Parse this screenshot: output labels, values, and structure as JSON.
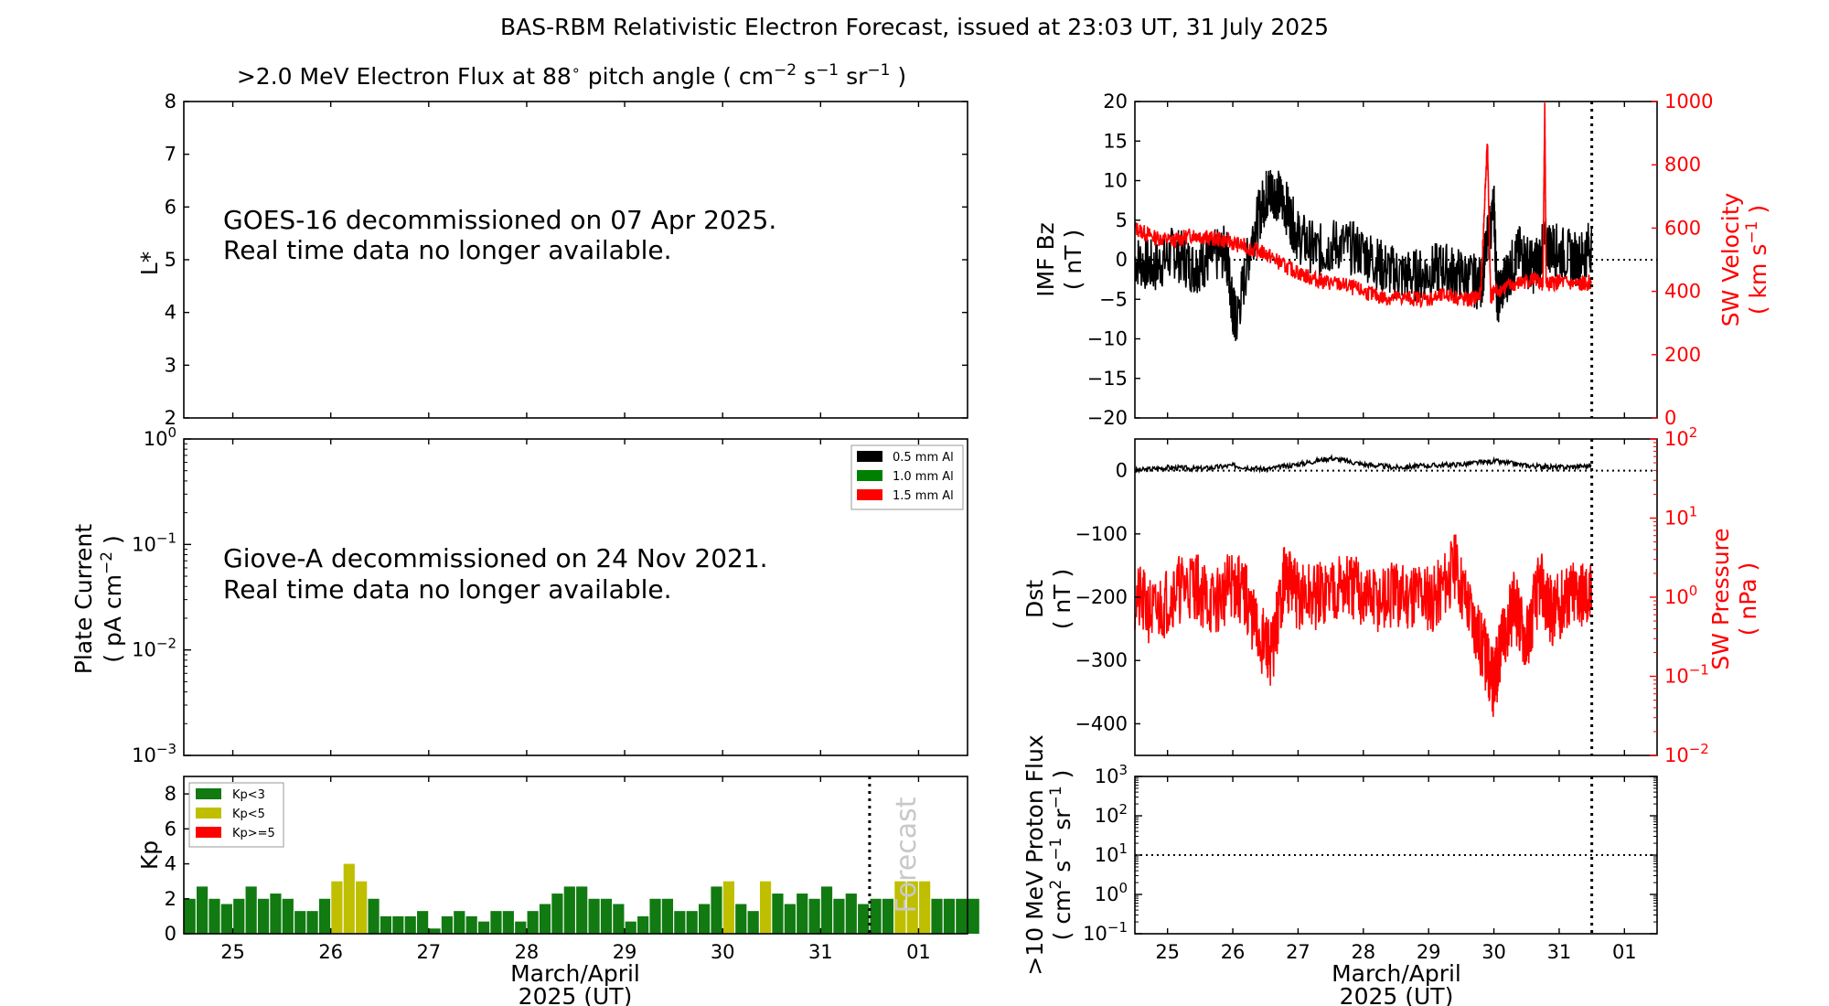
{
  "title": "BAS-RBM Relativistic Electron Forecast, issued at 23:03 UT, 31 July 2025",
  "flux_panel": {
    "title_pre": ">2.0 MeV Electron Flux at 88",
    "title_post": "pitch angle ( cm",
    "title_units": [
      "cm",
      "-2",
      "s",
      "-1",
      "sr",
      "-1"
    ],
    "ylabel": "L*",
    "message_line1": "GOES-16 decommissioned on 07 Apr 2025.",
    "message_line2": "Real time data no longer available."
  },
  "plate_panel": {
    "ylabel_line1": "Plate Current",
    "ylabel_line2_pre": "( pA cm",
    "ylabel_line2_sup": "-2",
    "ylabel_line2_post": " )",
    "message_line1": "Giove-A decommissioned on 24 Nov 2021.",
    "message_line2": "Real time data no longer available.",
    "legend": [
      {
        "label": "0.5 mm Al",
        "color": "#000000"
      },
      {
        "label": "1.0 mm Al",
        "color": "#008000"
      },
      {
        "label": "1.5 mm Al",
        "color": "#ff0000"
      }
    ]
  },
  "kp_panel": {
    "ylabel": "Kp",
    "forecast_label": "Forecast",
    "legend": [
      {
        "label": "Kp<3",
        "color": "#117a11"
      },
      {
        "label": "Kp<5",
        "color": "#bfbf00"
      },
      {
        "label": "Kp>=5",
        "color": "#ff0000"
      }
    ]
  },
  "imf_panel": {
    "ylabel_left": [
      "IMF Bz",
      "( nT )"
    ],
    "ylabel_right": [
      "SW Velocity",
      "( km s",
      "-1",
      " )"
    ]
  },
  "dst_panel": {
    "ylabel_left": [
      "Dst",
      "( nT )"
    ],
    "ylabel_right": [
      "SW Pressure",
      "( nPa )"
    ]
  },
  "proton_panel": {
    "ylabel": [
      ">10 MeV Proton Flux",
      "( cm",
      "2",
      " s",
      "-1",
      " sr",
      "-1",
      " )"
    ]
  },
  "xaxis": {
    "label_line1": "March/April",
    "label_line2": "2025 (UT)",
    "ticks": [
      "25",
      "26",
      "27",
      "28",
      "29",
      "30",
      "31",
      "01"
    ]
  },
  "colors": {
    "kp_low": "#117a11",
    "kp_mid": "#bfbf00",
    "kp_high": "#ff0000",
    "sw_red": "#ff0000",
    "black": "#000000"
  },
  "chart_data": [
    {
      "type": "line",
      "title": ">2.0 MeV Electron Flux at 88° pitch angle ( cm-2 s-1 sr-1 )",
      "ylabel": "L*",
      "ylim": [
        2,
        8
      ],
      "yticks": [
        2,
        3,
        4,
        5,
        6,
        7,
        8
      ],
      "x_range_days": [
        "2025-03-24 12:00",
        "2025-04-01 12:00"
      ],
      "series": []
    },
    {
      "type": "line",
      "ylabel": "Plate Current ( pA cm-2 )",
      "yscale": "log",
      "ylim": [
        0.001,
        1
      ],
      "yticks_exponent": [
        -3,
        -2,
        -1,
        0
      ],
      "series": [
        {
          "name": "0.5 mm Al",
          "values": []
        },
        {
          "name": "1.0 mm Al",
          "values": []
        },
        {
          "name": "1.5 mm Al",
          "values": []
        }
      ]
    },
    {
      "type": "bar",
      "ylabel": "Kp",
      "ylim": [
        0,
        9
      ],
      "yticks": [
        0,
        2,
        4,
        6,
        8
      ],
      "x_start": "2025-03-24 12:00",
      "bin_hours": 3,
      "forecast_start": "2025-03-31 12:00",
      "values": [
        2.0,
        2.7,
        2.0,
        1.7,
        2.0,
        2.7,
        2.0,
        2.3,
        2.0,
        1.3,
        1.3,
        2.0,
        3.0,
        4.0,
        3.0,
        2.0,
        1.0,
        1.0,
        1.0,
        1.3,
        0.3,
        1.0,
        1.3,
        1.0,
        0.7,
        1.3,
        1.3,
        0.7,
        1.3,
        1.7,
        2.3,
        2.7,
        2.7,
        2.0,
        2.0,
        1.7,
        0.7,
        1.0,
        2.0,
        2.0,
        1.3,
        1.3,
        1.7,
        2.7,
        3.0,
        1.7,
        1.3,
        3.0,
        2.3,
        1.7,
        2.3,
        2.0,
        2.7,
        2.0,
        2.3,
        1.7,
        2.0,
        2.0,
        3.0,
        3.0,
        3.0,
        2.0,
        2.0,
        2.0,
        2.0
      ]
    },
    {
      "type": "line",
      "ylabel": "IMF Bz ( nT )",
      "ylim": [
        -20,
        20
      ],
      "yticks": [
        -20,
        -15,
        -10,
        -5,
        0,
        5,
        10,
        15,
        20
      ],
      "y2label": "SW Velocity ( km s-1 )",
      "y2lim": [
        0,
        1000
      ],
      "y2ticks": [
        0,
        200,
        400,
        600,
        800,
        1000
      ],
      "now_marker": "2025-03-31 12:00",
      "series": [
        {
          "name": "IMF Bz",
          "axis": "left",
          "color": "#000000",
          "x": [
            24.5,
            24.8,
            25.1,
            25.4,
            25.6,
            25.9,
            26.0,
            26.05,
            26.3,
            26.5,
            26.6,
            26.8,
            27.0,
            27.3,
            27.6,
            28.0,
            28.3,
            28.6,
            28.9,
            29.2,
            29.5,
            29.8,
            30.0,
            30.05,
            30.2,
            30.4,
            30.6,
            30.8,
            31.0,
            31.3,
            31.5
          ],
          "values": [
            0,
            -1,
            1,
            -1,
            0,
            1,
            -6,
            -8,
            3,
            8,
            9,
            7,
            3,
            1,
            2,
            1,
            -1,
            -2,
            -2,
            -1,
            -2,
            -3,
            7,
            -5,
            -2,
            1,
            -1,
            2,
            1,
            0,
            2
          ]
        },
        {
          "name": "SW Velocity",
          "axis": "right",
          "color": "#ff0000",
          "x": [
            24.5,
            24.8,
            25.1,
            25.4,
            25.6,
            25.9,
            26.2,
            26.5,
            26.8,
            27.1,
            27.4,
            27.7,
            28.0,
            28.3,
            28.6,
            29.0,
            29.3,
            29.6,
            29.8,
            29.9,
            29.95,
            30.0,
            30.3,
            30.6,
            30.75,
            30.78,
            30.8,
            31.0,
            31.3,
            31.5
          ],
          "values": [
            600,
            570,
            560,
            580,
            570,
            560,
            540,
            520,
            480,
            450,
            430,
            420,
            400,
            380,
            380,
            375,
            390,
            370,
            390,
            880,
            380,
            400,
            420,
            440,
            420,
            1000,
            420,
            430,
            420,
            430
          ]
        }
      ]
    },
    {
      "type": "line",
      "ylabel": "Dst ( nT )",
      "ylim": [
        -450,
        50
      ],
      "yticks": [
        -400,
        -300,
        -200,
        -100,
        0
      ],
      "y2label": "SW Pressure ( nPa )",
      "y2scale": "log",
      "y2lim": [
        0.01,
        100
      ],
      "now_marker": "2025-03-31 12:00",
      "series": [
        {
          "name": "Dst",
          "axis": "left",
          "color": "#000000",
          "x": [
            24.5,
            25.0,
            25.5,
            26.0,
            26.5,
            27.0,
            27.5,
            28.0,
            28.5,
            29.0,
            29.5,
            30.0,
            30.5,
            31.0,
            31.5
          ],
          "values": [
            0,
            5,
            3,
            8,
            2,
            10,
            20,
            10,
            5,
            8,
            10,
            15,
            8,
            5,
            8
          ]
        },
        {
          "name": "SW Pressure",
          "axis": "right",
          "color": "#ff0000",
          "x": [
            24.5,
            24.8,
            25.1,
            25.4,
            25.7,
            26.0,
            26.2,
            26.4,
            26.6,
            26.8,
            27.0,
            27.3,
            27.6,
            27.9,
            28.2,
            28.5,
            28.8,
            29.1,
            29.4,
            29.7,
            29.9,
            30.0,
            30.1,
            30.3,
            30.5,
            30.7,
            30.9,
            31.1,
            31.3,
            31.5
          ],
          "values": [
            1.0,
            0.6,
            1.2,
            1.5,
            0.8,
            1.5,
            1.0,
            0.3,
            0.2,
            2.0,
            1.0,
            1.0,
            1.5,
            1.2,
            0.9,
            1.0,
            1.2,
            1.0,
            2.5,
            0.5,
            0.15,
            0.08,
            0.2,
            0.8,
            0.3,
            1.5,
            0.6,
            1.0,
            1.2,
            1.0
          ]
        }
      ]
    },
    {
      "type": "line",
      "ylabel": ">10 MeV Proton Flux ( cm2 s-1 sr-1 )",
      "yscale": "log",
      "ylim": [
        0.1,
        1000
      ],
      "yticks_exponent": [
        -1,
        0,
        1,
        2,
        3
      ],
      "threshold": 10,
      "now_marker": "2025-03-31 12:00",
      "series": []
    }
  ]
}
